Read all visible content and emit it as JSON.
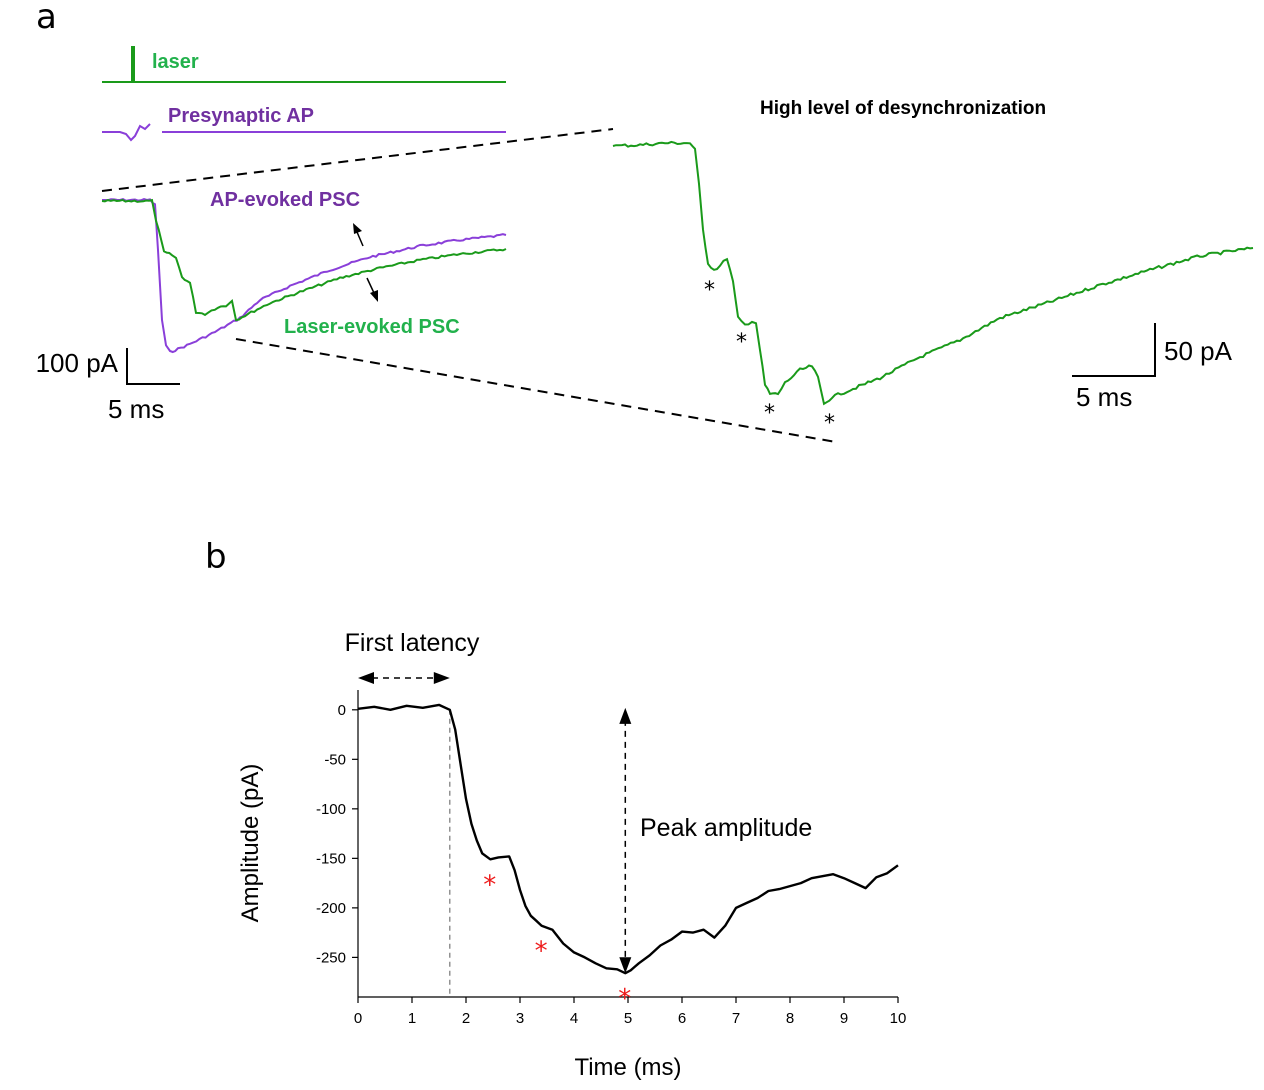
{
  "colors": {
    "laser_green": "#1a9a1a",
    "label_green": "#22b14c",
    "purple": "#8a3fd9",
    "label_purple": "#7030a0",
    "black": "#000000",
    "red_star": "#ee1c1c",
    "dashed_gray": "#777777"
  },
  "panel_a": {
    "label": "a",
    "laser_label": "laser",
    "presynaptic_label": "Presynaptic AP",
    "ap_psc_label": "AP-evoked PSC",
    "laser_psc_label": "Laser-evoked PSC",
    "right_title": "High level of desynchronization",
    "left_scale": {
      "amplitude_label": "100 pA",
      "time_label": "5 ms"
    },
    "right_scale": {
      "amplitude_label": "50 pA",
      "time_label": "5 ms"
    },
    "event_marker": "*"
  },
  "chart_data": {
    "type": "line",
    "panel_label": "b",
    "xlabel": "Time (ms)",
    "ylabel": "Amplitude (pA)",
    "xlim": [
      0,
      10
    ],
    "ylim": [
      -290,
      20
    ],
    "x_ticks": [
      0,
      1,
      2,
      3,
      4,
      5,
      6,
      7,
      8,
      9,
      10
    ],
    "y_ticks": [
      0,
      -50,
      -100,
      -150,
      -200,
      -250
    ],
    "x": [
      0,
      0.3,
      0.6,
      0.9,
      1.2,
      1.5,
      1.7,
      1.8,
      1.9,
      2.0,
      2.1,
      2.2,
      2.3,
      2.45,
      2.6,
      2.8,
      2.9,
      3.0,
      3.1,
      3.2,
      3.3,
      3.4,
      3.5,
      3.6,
      3.8,
      4.0,
      4.2,
      4.4,
      4.6,
      4.8,
      4.95,
      5.05,
      5.2,
      5.4,
      5.6,
      5.8,
      6.0,
      6.2,
      6.4,
      6.6,
      6.8,
      7.0,
      7.2,
      7.4,
      7.6,
      7.8,
      8.0,
      8.2,
      8.4,
      8.6,
      8.8,
      9.0,
      9.2,
      9.4,
      9.6,
      9.8,
      10.0
    ],
    "y": [
      1,
      3,
      0,
      4,
      2,
      5,
      0,
      -20,
      -55,
      -90,
      -115,
      -132,
      -145,
      -151,
      -149,
      -148,
      -162,
      -182,
      -198,
      -208,
      -213,
      -218,
      -220,
      -222,
      -236,
      -245,
      -250,
      -256,
      -261,
      -262,
      -266,
      -263,
      -256,
      -248,
      -238,
      -232,
      -224,
      -225,
      -222,
      -230,
      -218,
      -200,
      -195,
      -190,
      -183,
      -181,
      -178,
      -175,
      -170,
      -168,
      -166,
      -170,
      -175,
      -180,
      -169,
      -165,
      -157
    ],
    "series": [
      {
        "values": "y"
      }
    ],
    "first_latency_ms": 1.7,
    "peak_time_ms": 4.95,
    "peak_amplitude_pA": -266,
    "event_marker_times_ms": [
      2.45,
      3.4,
      4.95
    ],
    "annotations": [
      "First latency",
      "Peak amplitude"
    ],
    "event_marker": "*"
  }
}
